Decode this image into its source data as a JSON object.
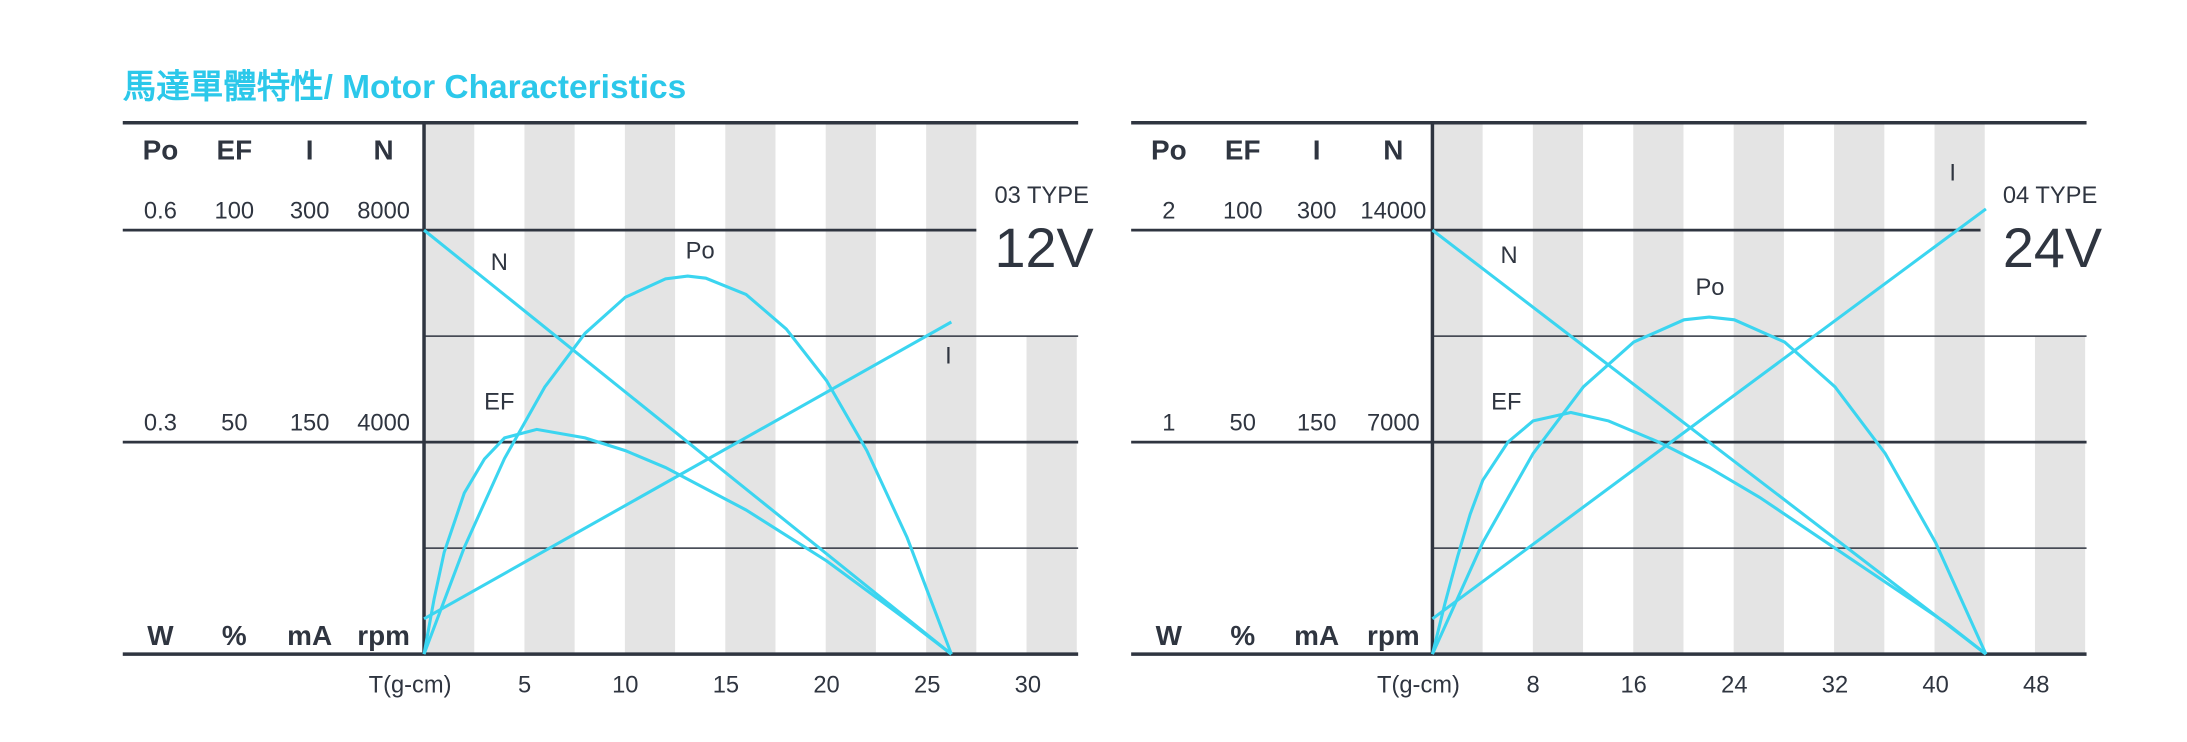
{
  "header": {
    "title": "馬達單體特性/ Motor Characteristics"
  },
  "chart_data": [
    {
      "type": "line",
      "title": "03 TYPE",
      "subtitle": "12V",
      "x_label": "T(g-cm)",
      "color": "#3bd5f0",
      "xlim": [
        0,
        32.5
      ],
      "xticks": [
        5,
        10,
        15,
        20,
        25,
        30
      ],
      "axes": [
        {
          "label": "Po",
          "unit": "W",
          "ylim": [
            0,
            0.6
          ],
          "yticks": [
            0.3,
            0.6
          ]
        },
        {
          "label": "EF",
          "unit": "%",
          "ylim": [
            0,
            100
          ],
          "yticks": [
            50,
            100
          ]
        },
        {
          "label": "I",
          "unit": "mA",
          "ylim": [
            0,
            300
          ],
          "yticks": [
            150,
            300
          ]
        },
        {
          "label": "N",
          "unit": "rpm",
          "ylim": [
            0,
            8000
          ],
          "yticks": [
            4000,
            8000
          ]
        }
      ],
      "series": [
        {
          "name": "N",
          "axis": 3,
          "x": [
            0,
            26.2
          ],
          "values": [
            8000,
            0
          ]
        },
        {
          "name": "Po",
          "axis": 0,
          "x": [
            0,
            2,
            4,
            6,
            8,
            10,
            12,
            13.1,
            14,
            16,
            18,
            20,
            22,
            24,
            26.2
          ],
          "values": [
            0,
            0.151,
            0.277,
            0.378,
            0.454,
            0.505,
            0.531,
            0.535,
            0.532,
            0.509,
            0.46,
            0.387,
            0.288,
            0.165,
            0
          ]
        },
        {
          "name": "EF",
          "axis": 1,
          "x": [
            0,
            0.5,
            1,
            2,
            3,
            4,
            5.6,
            8,
            10,
            12,
            14,
            16,
            18,
            20,
            22,
            24,
            26.2
          ],
          "values": [
            0,
            13,
            24,
            38,
            46,
            51,
            53,
            51,
            48,
            44,
            39,
            34,
            28,
            22,
            15,
            8,
            0
          ]
        },
        {
          "name": "I",
          "axis": 2,
          "x": [
            0,
            26.2
          ],
          "values": [
            25,
            235
          ]
        }
      ]
    },
    {
      "type": "line",
      "title": "04 TYPE",
      "subtitle": "24V",
      "x_label": "T(g-cm)",
      "color": "#3bd5f0",
      "xlim": [
        0,
        52
      ],
      "xticks": [
        8,
        16,
        24,
        32,
        40,
        48
      ],
      "axes": [
        {
          "label": "Po",
          "unit": "W",
          "ylim": [
            0,
            2
          ],
          "yticks": [
            1,
            2
          ]
        },
        {
          "label": "EF",
          "unit": "%",
          "ylim": [
            0,
            100
          ],
          "yticks": [
            50,
            100
          ]
        },
        {
          "label": "I",
          "unit": "mA",
          "ylim": [
            0,
            300
          ],
          "yticks": [
            150,
            300
          ]
        },
        {
          "label": "N",
          "unit": "rpm",
          "ylim": [
            0,
            14000
          ],
          "yticks": [
            7000,
            14000
          ]
        }
      ],
      "series": [
        {
          "name": "N",
          "axis": 3,
          "x": [
            0,
            44
          ],
          "values": [
            14000,
            0
          ]
        },
        {
          "name": "Po",
          "axis": 0,
          "x": [
            0,
            4,
            8,
            12,
            16,
            20,
            22,
            24,
            28,
            32,
            36,
            40,
            44
          ],
          "values": [
            0,
            0.526,
            0.946,
            1.261,
            1.472,
            1.577,
            1.59,
            1.577,
            1.472,
            1.261,
            0.946,
            0.526,
            0
          ]
        },
        {
          "name": "EF",
          "axis": 1,
          "x": [
            0,
            1,
            2,
            3,
            4,
            6,
            8,
            11,
            14,
            18,
            22,
            26,
            30,
            34,
            38,
            41,
            44
          ],
          "values": [
            0,
            12,
            23,
            33,
            41,
            50,
            55,
            57,
            55,
            50,
            44,
            37,
            29,
            21,
            13,
            7,
            0
          ]
        },
        {
          "name": "I",
          "axis": 2,
          "x": [
            0,
            44
          ],
          "values": [
            25,
            315
          ]
        }
      ]
    }
  ]
}
